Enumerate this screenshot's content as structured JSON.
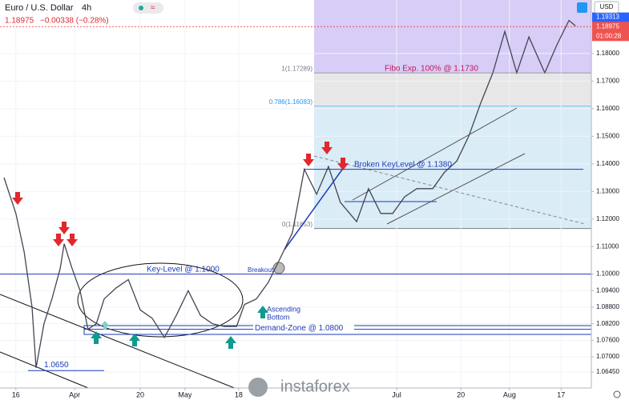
{
  "chart_data": {
    "type": "line",
    "title": "Euro / U.S. Dollar",
    "interval": "4h",
    "last_price": 1.18975,
    "change": "−0.00338 (−0.28%)",
    "current_bid": 1.19313,
    "countdown": "01:00:28",
    "currency": "USD",
    "watermark": "instaforex",
    "xlim": [
      0,
      164
    ],
    "ylim": [
      1.0587,
      1.1994
    ],
    "xticks": [
      {
        "value": 4.4,
        "label": "16"
      },
      {
        "value": 20.7,
        "label": "Apr"
      },
      {
        "value": 38.9,
        "label": "20"
      },
      {
        "value": 51.3,
        "label": "May"
      },
      {
        "value": 66.2,
        "label": "18"
      },
      {
        "value": 110,
        "label": "Jul"
      },
      {
        "value": 127.8,
        "label": "20"
      },
      {
        "value": 141.3,
        "label": "Aug"
      },
      {
        "value": 155.6,
        "label": "17"
      }
    ],
    "yticks": [
      {
        "value": 1.18,
        "label": "1.18000"
      },
      {
        "value": 1.17,
        "label": "1.17000"
      },
      {
        "value": 1.16,
        "label": "1.16000"
      },
      {
        "value": 1.15,
        "label": "1.15000"
      },
      {
        "value": 1.14,
        "label": "1.14000"
      },
      {
        "value": 1.13,
        "label": "1.13000"
      },
      {
        "value": 1.12,
        "label": "1.12000"
      },
      {
        "value": 1.11,
        "label": "1.11000"
      },
      {
        "value": 1.1,
        "label": "1.10000"
      },
      {
        "value": 1.094,
        "label": "1.09400"
      },
      {
        "value": 1.088,
        "label": "1.08800"
      },
      {
        "value": 1.082,
        "label": "1.08200"
      },
      {
        "value": 1.076,
        "label": "1.07600"
      },
      {
        "value": 1.07,
        "label": "1.07000"
      },
      {
        "value": 1.0645,
        "label": "1.06450"
      }
    ],
    "series": [
      {
        "color": "#434651",
        "x": [
          1.1,
          4.4,
          6.7,
          8.9,
          10,
          12.2,
          14.4,
          16.7,
          17.8,
          20,
          22.2,
          24.4,
          26.7,
          28.9,
          32.2,
          35.6,
          38.9,
          42.2,
          45.6,
          48.9,
          52.2,
          55.6,
          58.9,
          62.2,
          65.6,
          67.8,
          71.1,
          74.4,
          77.8,
          81.1,
          84.4,
          87.8,
          91.1,
          94.4,
          98.9,
          102.2,
          105.6,
          108.9,
          112.2,
          115.6,
          120,
          123.3,
          126.7,
          130,
          133.3,
          136.7,
          140,
          143.3,
          146.7,
          151.1,
          154.4,
          157.8,
          159.6
        ],
        "values": [
          1.135,
          1.122,
          1.108,
          1.088,
          1.066,
          1.082,
          1.091,
          1.102,
          1.111,
          1.102,
          1.094,
          1.08,
          1.082,
          1.091,
          1.095,
          1.098,
          1.087,
          1.084,
          1.077,
          1.085,
          1.094,
          1.085,
          1.082,
          1.081,
          1.081,
          1.089,
          1.091,
          1.097,
          1.106,
          1.115,
          1.138,
          1.129,
          1.139,
          1.126,
          1.119,
          1.131,
          1.122,
          1.122,
          1.128,
          1.131,
          1.131,
          1.137,
          1.141,
          1.15,
          1.162,
          1.173,
          1.188,
          1.173,
          1.186,
          1.173,
          1.183,
          1.192,
          1.19
        ]
      }
    ],
    "fib_levels": [
      {
        "label": "1(1.17289)",
        "value": 1.17289,
        "color": "#787b86",
        "fill": "#d1c4f4"
      },
      {
        "label": "0.786(1.16083)",
        "value": 1.16083,
        "color": "#2196f3",
        "fill": "#e3e3e3"
      },
      {
        "label": "0(1.11653)",
        "value": 1.11653,
        "color": "#787b86",
        "fill": "#d3e9f5"
      }
    ],
    "levels": [
      {
        "label": "Key-Level @ 1.1000",
        "value": 1.1
      },
      {
        "label": "Broken KeyLevel @ 1.1380",
        "value": 1.138
      },
      {
        "label": "Demand-Zone @ 1.0800",
        "value": 1.08
      },
      {
        "label": "1.0650",
        "value": 1.065
      },
      {
        "label": "Fibo Exp. 100% @ 1.1730",
        "value": 1.173
      }
    ],
    "notes": {
      "breakout": "Breakout",
      "ascending_bottom": [
        "Ascending",
        "Bottom"
      ]
    }
  }
}
